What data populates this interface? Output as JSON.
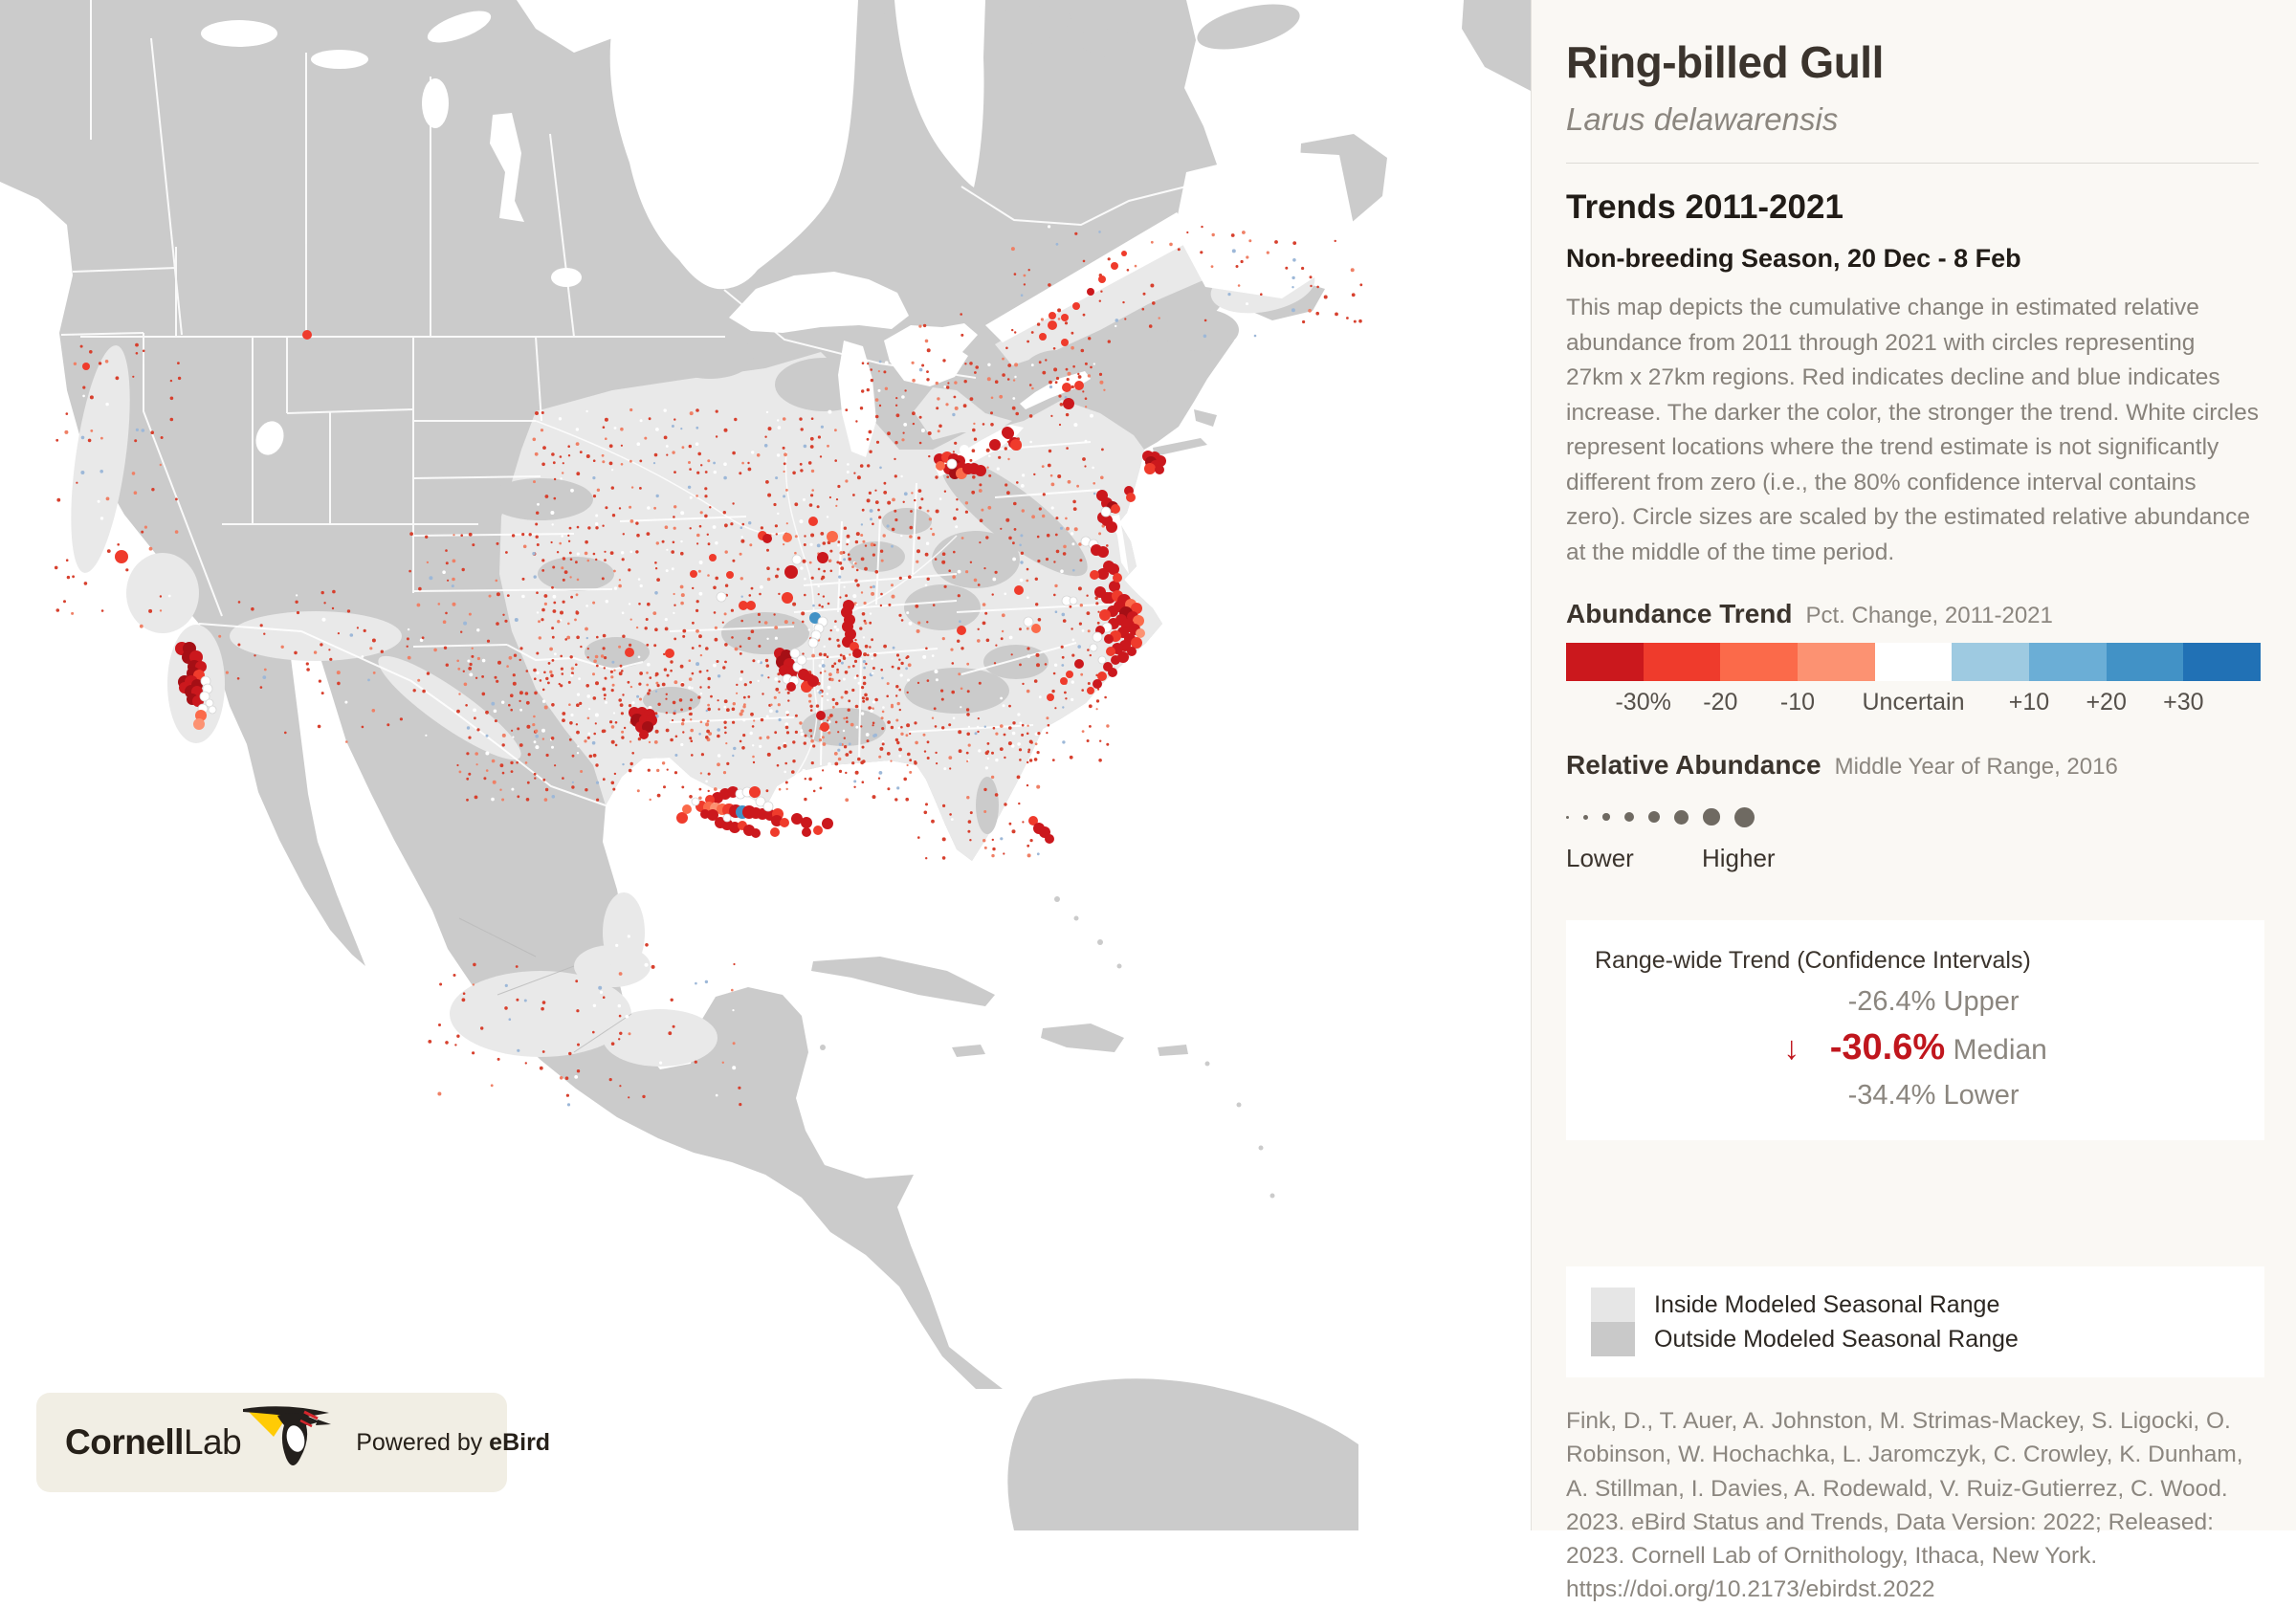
{
  "header": {
    "title": "Ring-billed Gull",
    "scientific_name": "Larus delawarensis"
  },
  "trends": {
    "heading": "Trends 2011-2021",
    "season": "Non-breeding Season, 20 Dec - 8 Feb",
    "description": "This map depicts the cumulative change in estimated relative abundance from 2011 through 2021 with circles representing 27km x 27km regions. Red indicates decline and blue indicates increase. The darker the color, the stronger the trend. White circles represent locations where the trend estimate is not significantly different from zero (i.e., the 80% confidence interval contains zero). Circle sizes are scaled by the estimated relative abundance at the middle of the time period."
  },
  "abundance_trend_legend": {
    "title": "Abundance Trend",
    "subtitle": "Pct. Change, 2011-2021",
    "colors": [
      "#cb181d",
      "#ef3b2c",
      "#fb6a4a",
      "#fc9272",
      "#ffffff",
      "#9ecae1",
      "#6baed6",
      "#4292c6",
      "#2171b5"
    ],
    "tick_labels": [
      "-30%",
      "-20",
      "-10",
      "Uncertain",
      "+10",
      "+20",
      "+30"
    ]
  },
  "relative_abundance_legend": {
    "title": "Relative Abundance",
    "subtitle": "Middle Year of Range, 2016",
    "low_label": "Lower",
    "high_label": "Higher",
    "circle_diameters": [
      3,
      5,
      7.5,
      10,
      12.5,
      15,
      17.5,
      21
    ],
    "circle_color": "#6f6a62"
  },
  "range_trend_card": {
    "title": "Range-wide Trend (Confidence Intervals)",
    "upper_value": "-26.4%",
    "upper_label": "Upper",
    "median_arrow": "↓",
    "median_value": "-30.6%",
    "median_label": "Median",
    "lower_value": "-34.4%",
    "lower_label": "Lower",
    "median_color": "#c0161d"
  },
  "range_legend": {
    "inside_label": "Inside Modeled Seasonal Range",
    "outside_label": "Outside Modeled Seasonal Range",
    "inside_color": "#e6e6e6",
    "outside_color": "#c9c9c9"
  },
  "citation": "Fink, D., T. Auer, A. Johnston, M. Strimas-Mackey, S. Ligocki, O. Robinson, W. Hochachka, L. Jaromczyk, C. Crowley, K. Dunham, A. Stillman, I. Davies, A. Rodewald, V. Ruiz-Gutierrez, C. Wood. 2023. eBird Status and Trends, Data Version: 2022; Released: 2023. Cornell Lab of Ornithology, Ithaca, New York. https://doi.org/10.2173/ebirdst.2022",
  "footer_logo": {
    "brand_bold": "Cornell",
    "brand_light": "Lab",
    "powered_prefix": "Powered by ",
    "powered_brand": "eBird"
  },
  "map": {
    "palette": {
      "a": "#a50f15",
      "b": "#cb181d",
      "c": "#ef3b2c",
      "s": "#fb6a4a",
      "p": "#fc9272",
      "w": "#ffffff",
      "B": "#4292c6",
      "L": "#9ecae1"
    },
    "points": [
      [
        190,
        678,
        7,
        "b"
      ],
      [
        198,
        678,
        7,
        "a"
      ],
      [
        197,
        687,
        7,
        "a"
      ],
      [
        205,
        687,
        7,
        "b"
      ],
      [
        203,
        697,
        7,
        "a"
      ],
      [
        210,
        697,
        6,
        "b"
      ],
      [
        202,
        704,
        7,
        "a"
      ],
      [
        208,
        706,
        6,
        "c"
      ],
      [
        193,
        713,
        7,
        "a"
      ],
      [
        200,
        713,
        7,
        "b"
      ],
      [
        206,
        716,
        6,
        "a"
      ],
      [
        193,
        719,
        6,
        "b"
      ],
      [
        200,
        723,
        7,
        "a"
      ],
      [
        206,
        723,
        6,
        "b"
      ],
      [
        201,
        731,
        6,
        "a"
      ],
      [
        207,
        733,
        6,
        "b"
      ],
      [
        212,
        741,
        5,
        "w"
      ],
      [
        210,
        748,
        6,
        "s"
      ],
      [
        208,
        757,
        6,
        "p"
      ],
      [
        215,
        712,
        5,
        "w"
      ],
      [
        217,
        720,
        5,
        "w"
      ],
      [
        214,
        728,
        5,
        "w"
      ],
      [
        219,
        735,
        4,
        "w"
      ],
      [
        222,
        742,
        4,
        "w"
      ],
      [
        90,
        383,
        4,
        "c"
      ],
      [
        127,
        582,
        7,
        "c"
      ],
      [
        321,
        350,
        5,
        "c"
      ],
      [
        663,
        745,
        6,
        "b"
      ],
      [
        671,
        745,
        6,
        "b"
      ],
      [
        679,
        747,
        6,
        "b"
      ],
      [
        666,
        753,
        7,
        "a"
      ],
      [
        674,
        753,
        6,
        "b"
      ],
      [
        681,
        753,
        6,
        "b"
      ],
      [
        670,
        760,
        6,
        "b"
      ],
      [
        677,
        760,
        6,
        "a"
      ],
      [
        673,
        768,
        5,
        "b"
      ],
      [
        658,
        682,
        5,
        "c"
      ],
      [
        700,
        683,
        5,
        "c"
      ],
      [
        725,
        600,
        4,
        "c"
      ],
      [
        745,
        583,
        4,
        "c"
      ],
      [
        850,
        545,
        5,
        "c"
      ],
      [
        870,
        561,
        6,
        "s"
      ],
      [
        797,
        560,
        5,
        "c"
      ],
      [
        802,
        563,
        5,
        "b"
      ],
      [
        823,
        562,
        5,
        "s"
      ],
      [
        860,
        583,
        6,
        "b"
      ],
      [
        827,
        598,
        7,
        "b"
      ],
      [
        833,
        585,
        5,
        "w"
      ],
      [
        823,
        625,
        6,
        "c"
      ],
      [
        777,
        633,
        5,
        "c"
      ],
      [
        785,
        633,
        5,
        "c"
      ],
      [
        754,
        624,
        5,
        "w"
      ],
      [
        763,
        601,
        4,
        "c"
      ],
      [
        852,
        646,
        6,
        "B"
      ],
      [
        860,
        650,
        5,
        "w"
      ],
      [
        856,
        657,
        5,
        "w"
      ],
      [
        853,
        664,
        5,
        "w"
      ],
      [
        850,
        672,
        5,
        "w"
      ],
      [
        887,
        633,
        6,
        "b"
      ],
      [
        885,
        640,
        6,
        "b"
      ],
      [
        888,
        648,
        6,
        "b"
      ],
      [
        886,
        655,
        6,
        "b"
      ],
      [
        889,
        663,
        6,
        "b"
      ],
      [
        886,
        671,
        6,
        "b"
      ],
      [
        893,
        676,
        5,
        "c"
      ],
      [
        896,
        683,
        5,
        "b"
      ],
      [
        815,
        683,
        6,
        "b"
      ],
      [
        822,
        685,
        6,
        "a"
      ],
      [
        818,
        692,
        7,
        "a"
      ],
      [
        825,
        694,
        6,
        "b"
      ],
      [
        820,
        701,
        6,
        "b"
      ],
      [
        828,
        702,
        6,
        "b"
      ],
      [
        834,
        697,
        5,
        "w"
      ],
      [
        838,
        690,
        5,
        "w"
      ],
      [
        831,
        683,
        5,
        "w"
      ],
      [
        840,
        705,
        6,
        "b"
      ],
      [
        846,
        710,
        6,
        "b"
      ],
      [
        823,
        710,
        5,
        "w"
      ],
      [
        830,
        712,
        5,
        "w"
      ],
      [
        843,
        718,
        6,
        "c"
      ],
      [
        850,
        712,
        6,
        "b"
      ],
      [
        827,
        718,
        5,
        "b"
      ],
      [
        858,
        748,
        5,
        "b"
      ],
      [
        862,
        760,
        5,
        "c"
      ],
      [
        713,
        855,
        6,
        "c"
      ],
      [
        758,
        830,
        6,
        "b"
      ],
      [
        766,
        828,
        6,
        "b"
      ],
      [
        774,
        830,
        5,
        "w"
      ],
      [
        781,
        828,
        5,
        "w"
      ],
      [
        789,
        828,
        6,
        "c"
      ],
      [
        750,
        834,
        6,
        "b"
      ],
      [
        742,
        836,
        5,
        "c"
      ],
      [
        733,
        843,
        6,
        "c"
      ],
      [
        741,
        844,
        6,
        "s"
      ],
      [
        748,
        845,
        6,
        "p"
      ],
      [
        755,
        846,
        6,
        "s"
      ],
      [
        762,
        847,
        7,
        "c"
      ],
      [
        769,
        848,
        7,
        "b"
      ],
      [
        776,
        849,
        7,
        "B"
      ],
      [
        783,
        849,
        7,
        "b"
      ],
      [
        790,
        850,
        6,
        "b"
      ],
      [
        797,
        851,
        6,
        "b"
      ],
      [
        805,
        852,
        6,
        "b"
      ],
      [
        813,
        851,
        6,
        "c"
      ],
      [
        745,
        852,
        6,
        "b"
      ],
      [
        737,
        851,
        5,
        "b"
      ],
      [
        753,
        860,
        6,
        "b"
      ],
      [
        760,
        862,
        6,
        "b"
      ],
      [
        768,
        865,
        6,
        "b"
      ],
      [
        776,
        863,
        5,
        "c"
      ],
      [
        783,
        868,
        6,
        "b"
      ],
      [
        790,
        871,
        5,
        "b"
      ],
      [
        812,
        858,
        6,
        "b"
      ],
      [
        820,
        860,
        5,
        "c"
      ],
      [
        833,
        856,
        6,
        "b"
      ],
      [
        843,
        860,
        6,
        "b"
      ],
      [
        865,
        861,
        6,
        "b"
      ],
      [
        855,
        868,
        5,
        "c"
      ],
      [
        843,
        870,
        5,
        "b"
      ],
      [
        810,
        870,
        5,
        "c"
      ],
      [
        795,
        838,
        5,
        "w"
      ],
      [
        803,
        843,
        5,
        "w"
      ],
      [
        760,
        855,
        4,
        "w"
      ],
      [
        727,
        838,
        4,
        "w"
      ],
      [
        718,
        846,
        5,
        "s"
      ],
      [
        1080,
        858,
        5,
        "c"
      ],
      [
        1086,
        866,
        6,
        "b"
      ],
      [
        1092,
        870,
        6,
        "b"
      ],
      [
        1097,
        877,
        5,
        "b"
      ],
      [
        982,
        480,
        6,
        "b"
      ],
      [
        990,
        478,
        6,
        "c"
      ],
      [
        997,
        480,
        6,
        "b"
      ],
      [
        1003,
        482,
        6,
        "b"
      ],
      [
        998,
        487,
        7,
        "a"
      ],
      [
        1005,
        489,
        6,
        "b"
      ],
      [
        992,
        490,
        6,
        "b"
      ],
      [
        998,
        495,
        6,
        "a"
      ],
      [
        1005,
        495,
        6,
        "s"
      ],
      [
        1012,
        490,
        6,
        "b"
      ],
      [
        1018,
        490,
        6,
        "b"
      ],
      [
        1025,
        492,
        6,
        "b"
      ],
      [
        983,
        487,
        5,
        "s"
      ],
      [
        995,
        485,
        5,
        "w"
      ],
      [
        1040,
        465,
        6,
        "b"
      ],
      [
        1053,
        452,
        6,
        "b"
      ],
      [
        1060,
        463,
        6,
        "b"
      ],
      [
        1063,
        466,
        5,
        "c"
      ],
      [
        1115,
        405,
        5,
        "c"
      ],
      [
        1128,
        403,
        5,
        "c"
      ],
      [
        1117,
        422,
        6,
        "b"
      ],
      [
        1100,
        340,
        5,
        "c"
      ],
      [
        1113,
        332,
        4,
        "c"
      ],
      [
        1125,
        320,
        4,
        "c"
      ],
      [
        1140,
        305,
        4,
        "b"
      ],
      [
        1152,
        292,
        4,
        "c"
      ],
      [
        1165,
        278,
        4,
        "c"
      ],
      [
        1175,
        265,
        3,
        "c"
      ],
      [
        1090,
        352,
        4,
        "c"
      ],
      [
        1100,
        330,
        4,
        "c"
      ],
      [
        1113,
        358,
        4,
        "c"
      ],
      [
        1054,
        453,
        6,
        "b"
      ],
      [
        1062,
        465,
        6,
        "c"
      ],
      [
        1200,
        477,
        6,
        "b"
      ],
      [
        1207,
        478,
        6,
        "b"
      ],
      [
        1213,
        482,
        6,
        "b"
      ],
      [
        1203,
        483,
        6,
        "a"
      ],
      [
        1208,
        487,
        6,
        "b"
      ],
      [
        1202,
        490,
        6,
        "c"
      ],
      [
        1212,
        491,
        5,
        "b"
      ],
      [
        1180,
        513,
        5,
        "b"
      ],
      [
        1182,
        520,
        5,
        "c"
      ],
      [
        1152,
        518,
        6,
        "b"
      ],
      [
        1157,
        526,
        6,
        "b"
      ],
      [
        1163,
        530,
        6,
        "a"
      ],
      [
        1153,
        541,
        6,
        "b"
      ],
      [
        1157,
        544,
        6,
        "b"
      ],
      [
        1162,
        551,
        6,
        "b"
      ],
      [
        1166,
        532,
        5,
        "c"
      ],
      [
        1156,
        535,
        5,
        "w"
      ],
      [
        1135,
        566,
        5,
        "w"
      ],
      [
        1143,
        569,
        5,
        "w"
      ],
      [
        1146,
        575,
        6,
        "b"
      ],
      [
        1153,
        577,
        6,
        "b"
      ],
      [
        1159,
        592,
        6,
        "b"
      ],
      [
        1164,
        595,
        6,
        "b"
      ],
      [
        1153,
        600,
        6,
        "b"
      ],
      [
        1144,
        601,
        5,
        "c"
      ],
      [
        1165,
        613,
        6,
        "b"
      ],
      [
        1168,
        604,
        5,
        "c"
      ],
      [
        1150,
        619,
        6,
        "b"
      ],
      [
        1157,
        625,
        6,
        "b"
      ],
      [
        1065,
        617,
        5,
        "c"
      ],
      [
        1115,
        628,
        5,
        "w"
      ],
      [
        1122,
        628,
        4,
        "w"
      ],
      [
        1083,
        657,
        5,
        "s"
      ],
      [
        1075,
        650,
        5,
        "w"
      ],
      [
        1005,
        659,
        5,
        "c"
      ],
      [
        1160,
        625,
        6,
        "b"
      ],
      [
        1168,
        623,
        6,
        "c"
      ],
      [
        1175,
        628,
        7,
        "b"
      ],
      [
        1182,
        632,
        6,
        "s"
      ],
      [
        1188,
        636,
        6,
        "c"
      ],
      [
        1170,
        634,
        6,
        "b"
      ],
      [
        1163,
        639,
        6,
        "b"
      ],
      [
        1155,
        643,
        6,
        "c"
      ],
      [
        1177,
        641,
        7,
        "a"
      ],
      [
        1184,
        645,
        6,
        "b"
      ],
      [
        1190,
        649,
        6,
        "s"
      ],
      [
        1172,
        648,
        6,
        "b"
      ],
      [
        1164,
        652,
        6,
        "b"
      ],
      [
        1157,
        656,
        5,
        "w"
      ],
      [
        1150,
        659,
        5,
        "b"
      ],
      [
        1179,
        654,
        7,
        "b"
      ],
      [
        1186,
        658,
        6,
        "b"
      ],
      [
        1192,
        662,
        5,
        "p"
      ],
      [
        1174,
        661,
        6,
        "b"
      ],
      [
        1166,
        665,
        6,
        "c"
      ],
      [
        1159,
        668,
        5,
        "b"
      ],
      [
        1181,
        668,
        6,
        "b"
      ],
      [
        1188,
        672,
        6,
        "c"
      ],
      [
        1176,
        675,
        6,
        "b"
      ],
      [
        1168,
        678,
        6,
        "b"
      ],
      [
        1161,
        681,
        5,
        "c"
      ],
      [
        1183,
        681,
        5,
        "b"
      ],
      [
        1174,
        687,
        6,
        "b"
      ],
      [
        1166,
        690,
        5,
        "b"
      ],
      [
        1152,
        690,
        4,
        "w"
      ],
      [
        1147,
        666,
        5,
        "w"
      ],
      [
        1143,
        677,
        4,
        "w"
      ],
      [
        1158,
        697,
        5,
        "b"
      ],
      [
        1163,
        703,
        5,
        "b"
      ],
      [
        1152,
        707,
        5,
        "c"
      ],
      [
        1147,
        715,
        5,
        "b"
      ],
      [
        1140,
        722,
        4,
        "c"
      ],
      [
        1128,
        694,
        5,
        "b"
      ],
      [
        1118,
        705,
        4,
        "c"
      ],
      [
        1112,
        712,
        4,
        "c"
      ],
      [
        1098,
        729,
        4,
        "c"
      ]
    ],
    "stipple_regions": [
      [
        560,
        430,
        340,
        120,
        0.3
      ],
      [
        560,
        550,
        360,
        230,
        0.45
      ],
      [
        900,
        380,
        260,
        180,
        0.4
      ],
      [
        860,
        560,
        300,
        240,
        0.4
      ],
      [
        950,
        760,
        140,
        140,
        0.3
      ],
      [
        480,
        690,
        470,
        150,
        0.45
      ],
      [
        430,
        560,
        180,
        160,
        0.25
      ],
      [
        960,
        330,
        200,
        80,
        0.2
      ],
      [
        60,
        360,
        130,
        300,
        0.12
      ],
      [
        230,
        620,
        200,
        100,
        0.1
      ],
      [
        450,
        1010,
        330,
        150,
        0.1
      ],
      [
        300,
        660,
        160,
        120,
        0.08
      ],
      [
        1060,
        235,
        270,
        120,
        0.14
      ],
      [
        1280,
        245,
        150,
        95,
        0.16
      ],
      [
        620,
        980,
        60,
        120,
        0.15
      ]
    ],
    "stipple_colors": [
      "#d7402e",
      "#ef8066",
      "#9db8d8",
      "#ffffff"
    ]
  }
}
